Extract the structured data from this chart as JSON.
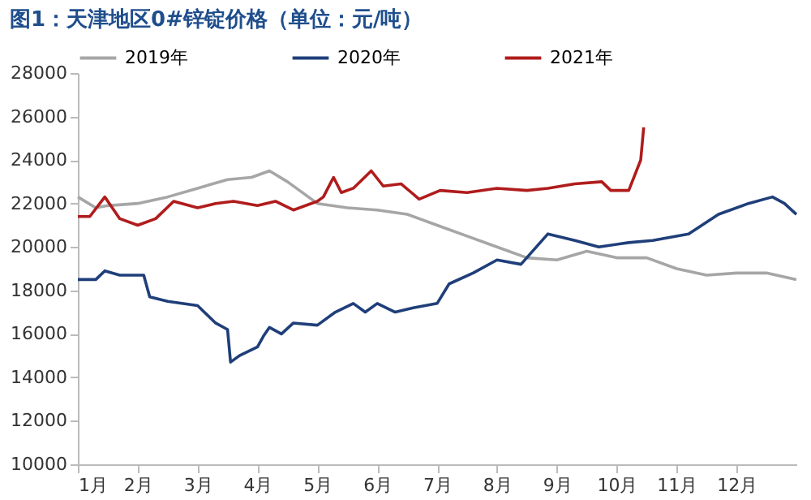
{
  "chart_data": {
    "type": "line",
    "title": "图1：天津地区0#锌锭价格（单位：元/吨）",
    "xlim": [
      1,
      13
    ],
    "xticks": [
      {
        "value": 1,
        "label": "1月"
      },
      {
        "value": 2,
        "label": "2月"
      },
      {
        "value": 3,
        "label": "3月"
      },
      {
        "value": 4,
        "label": "4月"
      },
      {
        "value": 5,
        "label": "5月"
      },
      {
        "value": 6,
        "label": "6月"
      },
      {
        "value": 7,
        "label": "7月"
      },
      {
        "value": 8,
        "label": "8月"
      },
      {
        "value": 9,
        "label": "9月"
      },
      {
        "value": 10,
        "label": "10月"
      },
      {
        "value": 11,
        "label": "11月"
      },
      {
        "value": 12,
        "label": "12月"
      }
    ],
    "ylim": [
      10000,
      28000
    ],
    "yticks": [
      10000,
      12000,
      14000,
      16000,
      18000,
      20000,
      22000,
      24000,
      26000,
      28000
    ],
    "grid": false,
    "legend": "top",
    "line_style": "solid",
    "marker": "none",
    "series": [
      {
        "name": "2019年",
        "color": "#a6a6a6",
        "x": [
          1,
          1.3,
          1.5,
          2,
          2.5,
          3,
          3.5,
          3.9,
          4.2,
          4.5,
          5,
          5.5,
          6,
          6.5,
          7,
          7.5,
          8,
          8.5,
          9,
          9.5,
          10,
          10.5,
          11,
          11.5,
          12,
          12.5,
          13
        ],
        "values": [
          22300,
          21800,
          21900,
          22000,
          22300,
          22700,
          23100,
          23200,
          23500,
          23000,
          22000,
          21800,
          21700,
          21500,
          21000,
          20500,
          20000,
          19500,
          19400,
          19800,
          19500,
          19500,
          19000,
          18700,
          18800,
          18800,
          18500
        ]
      },
      {
        "name": "2020年",
        "color": "#1f3f7a",
        "x": [
          1,
          1.3,
          1.45,
          1.7,
          2.1,
          2.2,
          2.5,
          3,
          3.3,
          3.5,
          3.55,
          3.7,
          4,
          4.1,
          4.2,
          4.4,
          4.6,
          5,
          5.3,
          5.6,
          5.8,
          6,
          6.3,
          6.6,
          7,
          7.2,
          7.6,
          8,
          8.4,
          8.85,
          9.3,
          9.7,
          10.2,
          10.6,
          11.2,
          11.7,
          12.2,
          12.6,
          12.8,
          13
        ],
        "values": [
          18500,
          18500,
          18900,
          18700,
          18700,
          17700,
          17500,
          17300,
          16500,
          16200,
          14700,
          15000,
          15400,
          15900,
          16300,
          16000,
          16500,
          16400,
          17000,
          17400,
          17000,
          17400,
          17000,
          17200,
          17400,
          18300,
          18800,
          19400,
          19200,
          20600,
          20300,
          20000,
          20200,
          20300,
          20600,
          21500,
          22000,
          22300,
          22000,
          21500
        ]
      },
      {
        "name": "2021年",
        "color": "#b01c1c",
        "x": [
          1,
          1.2,
          1.45,
          1.7,
          2,
          2.3,
          2.6,
          3,
          3.3,
          3.6,
          4,
          4.3,
          4.6,
          5,
          5.1,
          5.27,
          5.4,
          5.6,
          5.9,
          6.1,
          6.4,
          6.7,
          7.05,
          7.5,
          8,
          8.5,
          8.85,
          9.3,
          9.75,
          9.9,
          10.2,
          10.3,
          10.4,
          10.45
        ],
        "values": [
          21400,
          21400,
          22300,
          21300,
          21000,
          21300,
          22100,
          21800,
          22000,
          22100,
          21900,
          22100,
          21700,
          22100,
          22300,
          23200,
          22500,
          22700,
          23500,
          22800,
          22900,
          22200,
          22600,
          22500,
          22700,
          22600,
          22700,
          22900,
          23000,
          22600,
          22600,
          23300,
          24000,
          25500
        ]
      }
    ]
  }
}
